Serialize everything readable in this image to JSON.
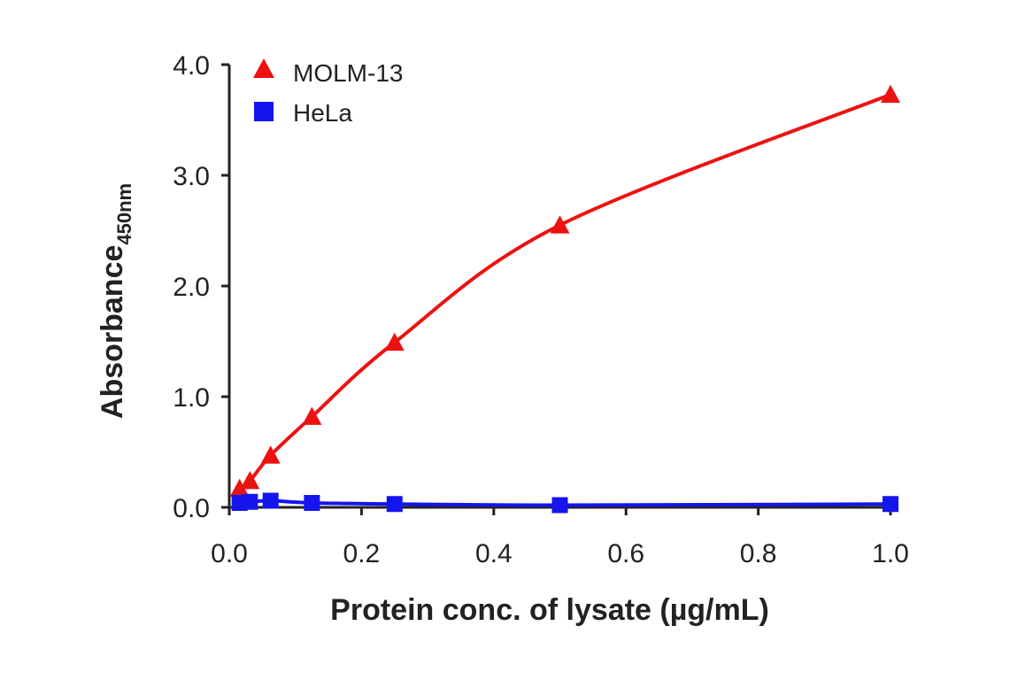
{
  "chart_data": {
    "type": "line",
    "xlabel": "Protein conc. of lysate (µg/mL)",
    "ylabel": "Absorbance",
    "ylabel_subscript": "450nm",
    "xlim": [
      0,
      1.0
    ],
    "ylim": [
      0,
      4.0
    ],
    "xticks": [
      0,
      0.2,
      0.4,
      0.6,
      0.8,
      1.0
    ],
    "xtick_labels": [
      "0.0",
      "0.2",
      "0.4",
      "0.6",
      "0.8",
      "1.0"
    ],
    "yticks": [
      0,
      1,
      2,
      3,
      4
    ],
    "ytick_labels": [
      "0.0",
      "1.0",
      "2.0",
      "3.0",
      "4.0"
    ],
    "grid": false,
    "legend": "top-left",
    "series": [
      {
        "name": "MOLM-13",
        "marker": "triangle",
        "color": "#ee1111",
        "x": [
          0.0156,
          0.03125,
          0.0625,
          0.125,
          0.25,
          0.5,
          1.0
        ],
        "y": [
          0.17,
          0.24,
          0.47,
          0.82,
          1.49,
          2.55,
          3.73
        ]
      },
      {
        "name": "HeLa",
        "marker": "square",
        "color": "#1515ee",
        "x": [
          0.0156,
          0.03125,
          0.0625,
          0.125,
          0.25,
          0.5,
          1.0
        ],
        "y": [
          0.04,
          0.05,
          0.06,
          0.04,
          0.03,
          0.02,
          0.03
        ]
      }
    ]
  }
}
